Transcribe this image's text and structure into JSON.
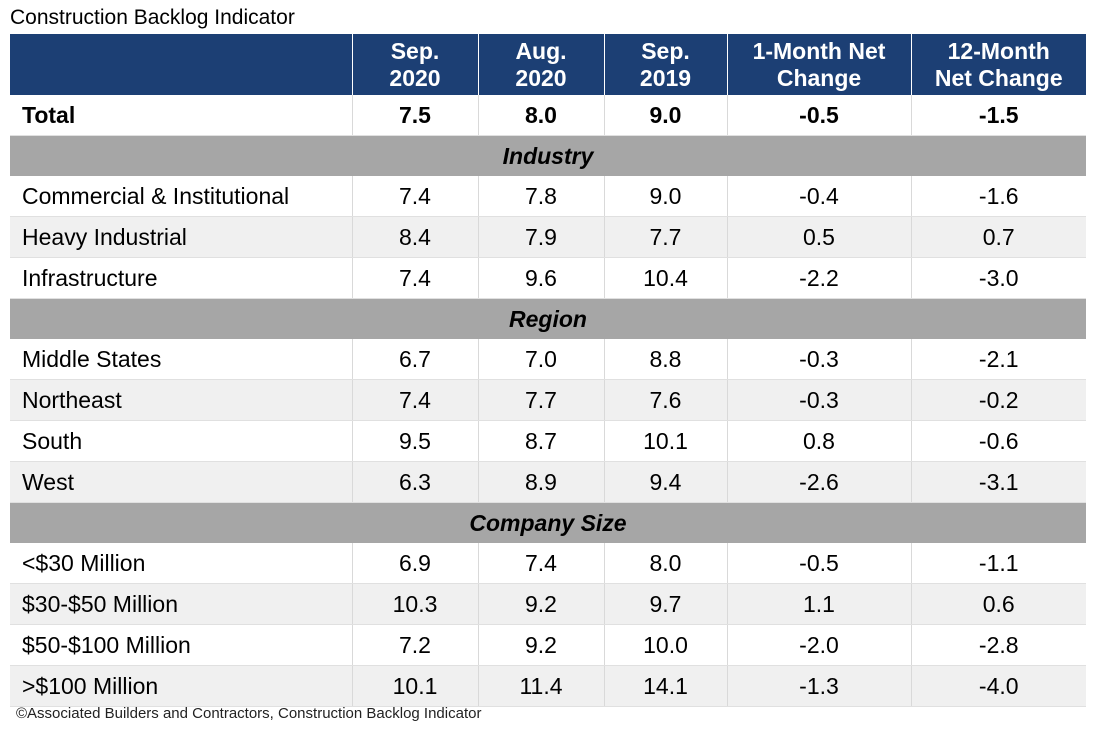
{
  "title": "Construction Backlog Indicator",
  "source": "©Associated Builders and Contractors, Construction Backlog Indicator",
  "chart_data": {
    "type": "table",
    "columns": [
      "",
      "Sep.\n2020",
      "Aug.\n2020",
      "Sep.\n2019",
      "1-Month Net\nChange",
      "12-Month\nNet Change"
    ],
    "total": {
      "label": "Total",
      "values": [
        "7.5",
        "8.0",
        "9.0",
        "-0.5",
        "-1.5"
      ]
    },
    "sections": [
      {
        "name": "Industry",
        "rows": [
          {
            "label": "Commercial & Institutional",
            "values": [
              "7.4",
              "7.8",
              "9.0",
              "-0.4",
              "-1.6"
            ]
          },
          {
            "label": "Heavy Industrial",
            "values": [
              "8.4",
              "7.9",
              "7.7",
              "0.5",
              "0.7"
            ]
          },
          {
            "label": "Infrastructure",
            "values": [
              "7.4",
              "9.6",
              "10.4",
              "-2.2",
              "-3.0"
            ]
          }
        ]
      },
      {
        "name": "Region",
        "rows": [
          {
            "label": "Middle States",
            "values": [
              "6.7",
              "7.0",
              "8.8",
              "-0.3",
              "-2.1"
            ]
          },
          {
            "label": "Northeast",
            "values": [
              "7.4",
              "7.7",
              "7.6",
              "-0.3",
              "-0.2"
            ]
          },
          {
            "label": "South",
            "values": [
              "9.5",
              "8.7",
              "10.1",
              "0.8",
              "-0.6"
            ]
          },
          {
            "label": "West",
            "values": [
              "6.3",
              "8.9",
              "9.4",
              "-2.6",
              "-3.1"
            ]
          }
        ]
      },
      {
        "name": "Company Size",
        "rows": [
          {
            "label": "<$30 Million",
            "values": [
              "6.9",
              "7.4",
              "8.0",
              "-0.5",
              "-1.1"
            ]
          },
          {
            "label": "$30-$50 Million",
            "values": [
              "10.3",
              "9.2",
              "9.7",
              "1.1",
              "0.6"
            ]
          },
          {
            "label": "$50-$100 Million",
            "values": [
              "7.2",
              "9.2",
              "10.0",
              "-2.0",
              "-2.8"
            ]
          },
          {
            "label": ">$100 Million",
            "values": [
              "10.1",
              "11.4",
              "14.1",
              "-1.3",
              "-4.0"
            ]
          }
        ]
      }
    ],
    "colors": {
      "header_bg": "#1c3f74",
      "section_bg": "#a6a6a6",
      "stripe_bg": "#f0f0f0"
    }
  }
}
